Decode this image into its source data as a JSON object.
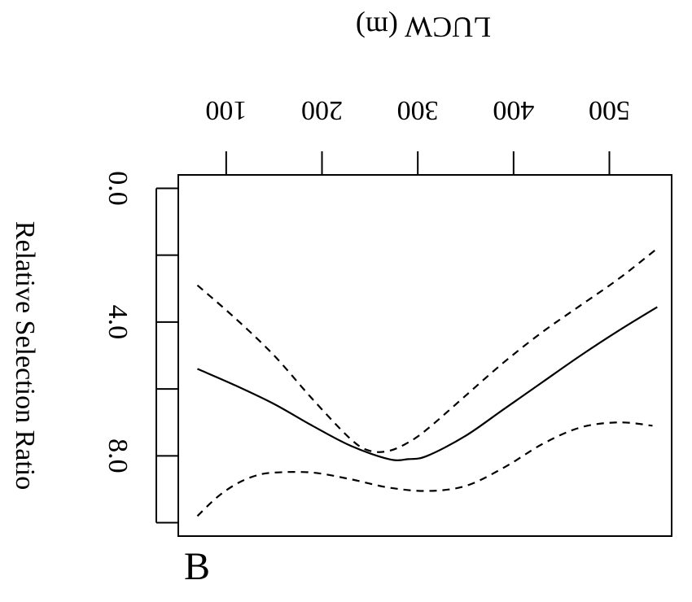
{
  "panel_label": "B",
  "chart_data": {
    "type": "line",
    "orientation": "rotated-180",
    "xlabel": "LUCW (m)",
    "ylabel": "Relative Selection Ratio",
    "x_ticks": [
      100,
      200,
      300,
      400,
      500
    ],
    "y_ticks": [
      {
        "value": 0.0,
        "label": "0.0"
      },
      {
        "value": 0.2,
        "label": ""
      },
      {
        "value": 0.4,
        "label": "4.0"
      },
      {
        "value": 0.6,
        "label": ""
      },
      {
        "value": 0.8,
        "label": "8.0"
      },
      {
        "value": 1.0,
        "label": ""
      }
    ],
    "xlim": [
      50,
      565
    ],
    "ylim": [
      -0.04,
      1.04
    ],
    "grid": false,
    "series": [
      {
        "style": "solid",
        "x": [
          70,
          110,
          150,
          190,
          230,
          270,
          290,
          310,
          350,
          390,
          430,
          470,
          510,
          550
        ],
        "y": [
          0.54,
          0.59,
          0.645,
          0.71,
          0.77,
          0.81,
          0.81,
          0.8,
          0.74,
          0.66,
          0.58,
          0.5,
          0.425,
          0.355
        ]
      },
      {
        "style": "dashed",
        "x": [
          70,
          110,
          150,
          190,
          230,
          250,
          270,
          290,
          310,
          350,
          390,
          430,
          470,
          510,
          550
        ],
        "y": [
          0.29,
          0.39,
          0.5,
          0.63,
          0.75,
          0.785,
          0.785,
          0.76,
          0.72,
          0.62,
          0.52,
          0.43,
          0.35,
          0.27,
          0.18
        ]
      },
      {
        "style": "dashed",
        "x": [
          70,
          90,
          110,
          130,
          150,
          190,
          230,
          270,
          310,
          350,
          390,
          430,
          470,
          510,
          545
        ],
        "y": [
          0.98,
          0.925,
          0.885,
          0.86,
          0.85,
          0.85,
          0.87,
          0.895,
          0.905,
          0.89,
          0.835,
          0.765,
          0.715,
          0.7,
          0.71
        ]
      }
    ]
  }
}
